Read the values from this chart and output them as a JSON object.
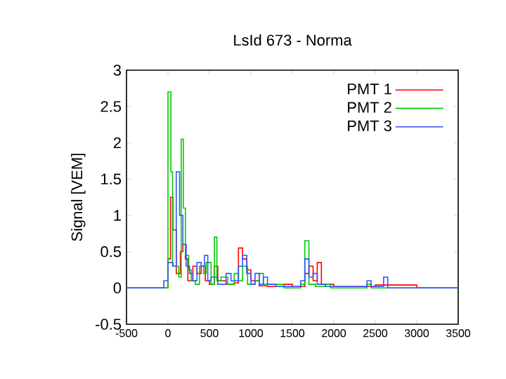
{
  "chart_data": {
    "type": "step",
    "title": "LsId 673 - Norma",
    "ylabel": "Signal [VEM]",
    "xlim": [
      -500,
      3500
    ],
    "xticks": [
      -500,
      0,
      500,
      1000,
      1500,
      2000,
      2500,
      3000,
      3500
    ],
    "ylim": [
      -0.5,
      3
    ],
    "yticks": [
      -0.5,
      0,
      0.5,
      1,
      1.5,
      2,
      2.5,
      3
    ],
    "legend": "top right",
    "grid": false,
    "marker": "none",
    "series": [
      {
        "name": "PMT 1",
        "color": "#ff0000",
        "x": [
          -500,
          0,
          30,
          60,
          100,
          150,
          180,
          210,
          240,
          300,
          350,
          400,
          450,
          500,
          560,
          600,
          700,
          800,
          850,
          900,
          950,
          1000,
          1100,
          1200,
          1400,
          1500,
          1650,
          1700,
          1750,
          1800,
          1850,
          2000,
          2500,
          3000,
          3500
        ],
        "values": [
          0,
          0.4,
          1.25,
          0.8,
          0.2,
          0.5,
          0.6,
          0.4,
          0.1,
          0.3,
          0.2,
          0.3,
          0.1,
          0.05,
          0.3,
          0.1,
          0.05,
          0.07,
          0.55,
          0.4,
          0.25,
          0.1,
          0.03,
          0.02,
          0.05,
          0.02,
          0.2,
          0.3,
          0.1,
          0.35,
          0.05,
          0.02,
          0.04,
          0,
          0
        ]
      },
      {
        "name": "PMT 2",
        "color": "#00cc00",
        "x": [
          -500,
          0,
          35,
          55,
          130,
          160,
          185,
          210,
          250,
          280,
          330,
          380,
          430,
          460,
          520,
          560,
          590,
          640,
          720,
          800,
          850,
          900,
          960,
          1050,
          1100,
          1150,
          1300,
          1400,
          1600,
          1650,
          1700,
          1780,
          1900,
          1960,
          2400,
          2450,
          3500
        ],
        "values": [
          0,
          2.7,
          1.6,
          0.3,
          0.15,
          2.05,
          1.1,
          0.45,
          0.25,
          0.1,
          0.05,
          0.3,
          0.2,
          0.35,
          0.05,
          0.7,
          0.1,
          0.15,
          0.05,
          0.2,
          0.1,
          0.3,
          0.05,
          0.1,
          0.2,
          0.05,
          0.05,
          0,
          0.05,
          0.65,
          0.05,
          0.02,
          0.05,
          0,
          0.05,
          0,
          0
        ]
      },
      {
        "name": "PMT 3",
        "color": "#3355ff",
        "x": [
          -500,
          -50,
          0,
          60,
          100,
          140,
          180,
          220,
          260,
          300,
          350,
          400,
          440,
          480,
          520,
          600,
          700,
          760,
          850,
          900,
          950,
          1000,
          1050,
          1100,
          1150,
          1200,
          1300,
          1600,
          1650,
          1700,
          1750,
          1800,
          1900,
          2400,
          2450,
          2600,
          2650,
          3500
        ],
        "values": [
          0,
          0.1,
          0.35,
          0.3,
          1.6,
          1.0,
          0.6,
          0.3,
          0.2,
          0.1,
          0.35,
          0.3,
          0.45,
          0.1,
          0.15,
          0.05,
          0.2,
          0.1,
          0.3,
          0.45,
          0.2,
          0.05,
          0.2,
          0.05,
          0.15,
          0.05,
          0.02,
          0.1,
          0.4,
          0.15,
          0.2,
          0.05,
          0.02,
          0.1,
          0.02,
          0.15,
          0,
          0
        ]
      }
    ]
  }
}
